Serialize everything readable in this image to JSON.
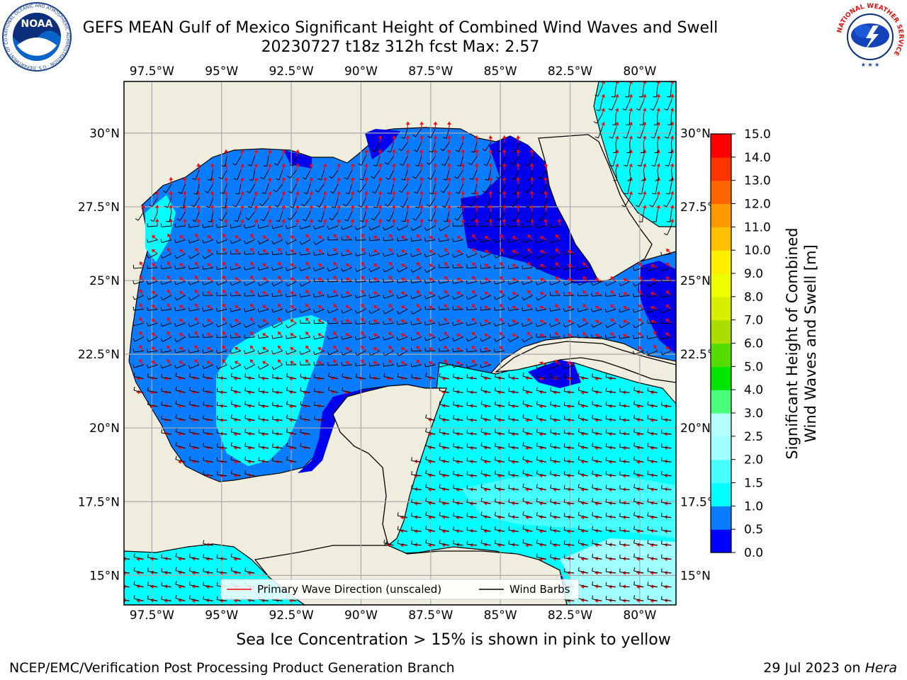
{
  "title": {
    "line1": "GEFS MEAN Gulf of Mexico Significant Height of Combined Wind Waves and Swell",
    "line2": "20230727 t18z 312h fcst   Max: 2.57"
  },
  "map": {
    "lon_range": [
      -98.5,
      -78.7
    ],
    "lat_range": [
      14.0,
      31.75
    ],
    "lon_ticks": [
      -97.5,
      -95,
      -92.5,
      -90,
      -87.5,
      -85,
      -82.5,
      -80
    ],
    "lat_ticks": [
      30,
      27.5,
      25,
      22.5,
      20,
      17.5,
      15
    ],
    "lon_tick_labels": [
      "97.5°W",
      "95°W",
      "92.5°W",
      "90°W",
      "87.5°W",
      "85°W",
      "82.5°W",
      "80°W"
    ],
    "lat_tick_labels": [
      "30°N",
      "27.5°N",
      "25°N",
      "22.5°N",
      "20°N",
      "17.5°N",
      "15°N"
    ],
    "grid": true,
    "land_color": "#efedde",
    "field_max": 2.57
  },
  "legend": {
    "placement": "lower-center",
    "primary_wave": "Primary Wave Direction (unscaled)",
    "wind_barbs": "Wind Barbs",
    "primary_wave_color": "#ff0000",
    "wind_barb_color": "#000000"
  },
  "colorbar": {
    "label_line1": "Significant Height of Combined",
    "label_line2": "Wind Waves and Swell [m]",
    "levels": [
      0.0,
      0.5,
      1.0,
      1.5,
      2.0,
      2.5,
      3.0,
      4.0,
      5.0,
      6.0,
      7.0,
      8.0,
      9.0,
      10.0,
      11.0,
      12.0,
      13.0,
      14.0,
      15.0
    ],
    "tick_labels": [
      "0.0",
      "0.5",
      "1.0",
      "1.5",
      "2.0",
      "2.5",
      "3.0",
      "4.0",
      "5.0",
      "6.0",
      "7.0",
      "8.0",
      "9.0",
      "10.0",
      "11.0",
      "12.0",
      "13.0",
      "14.0",
      "15.0"
    ],
    "colors": [
      "#0000ff",
      "#0a7dff",
      "#00ffff",
      "#46ffff",
      "#a0ffff",
      "#b4ffff",
      "#4aff7a",
      "#00e600",
      "#55dd00",
      "#aadd00",
      "#d8f000",
      "#f0ff00",
      "#ffee00",
      "#ffc000",
      "#ff9900",
      "#ff6600",
      "#ff3300",
      "#ff0000"
    ]
  },
  "caption": "Sea Ice Concentration > 15% is shown in pink to yellow",
  "footer": {
    "left": "NCEP/EMC/Verification Post Processing Product Generation Branch",
    "date": "29 Jul 2023 on ",
    "machine": "Hera"
  },
  "logos": {
    "noaa_text": "NOAA",
    "noaa_ring": "NATIONAL OCEANIC AND ATMOSPHERIC ADMINISTRATION · U.S. DEPARTMENT OF COMMERCE",
    "nws_ring": "NATIONAL WEATHER SERVICE"
  }
}
